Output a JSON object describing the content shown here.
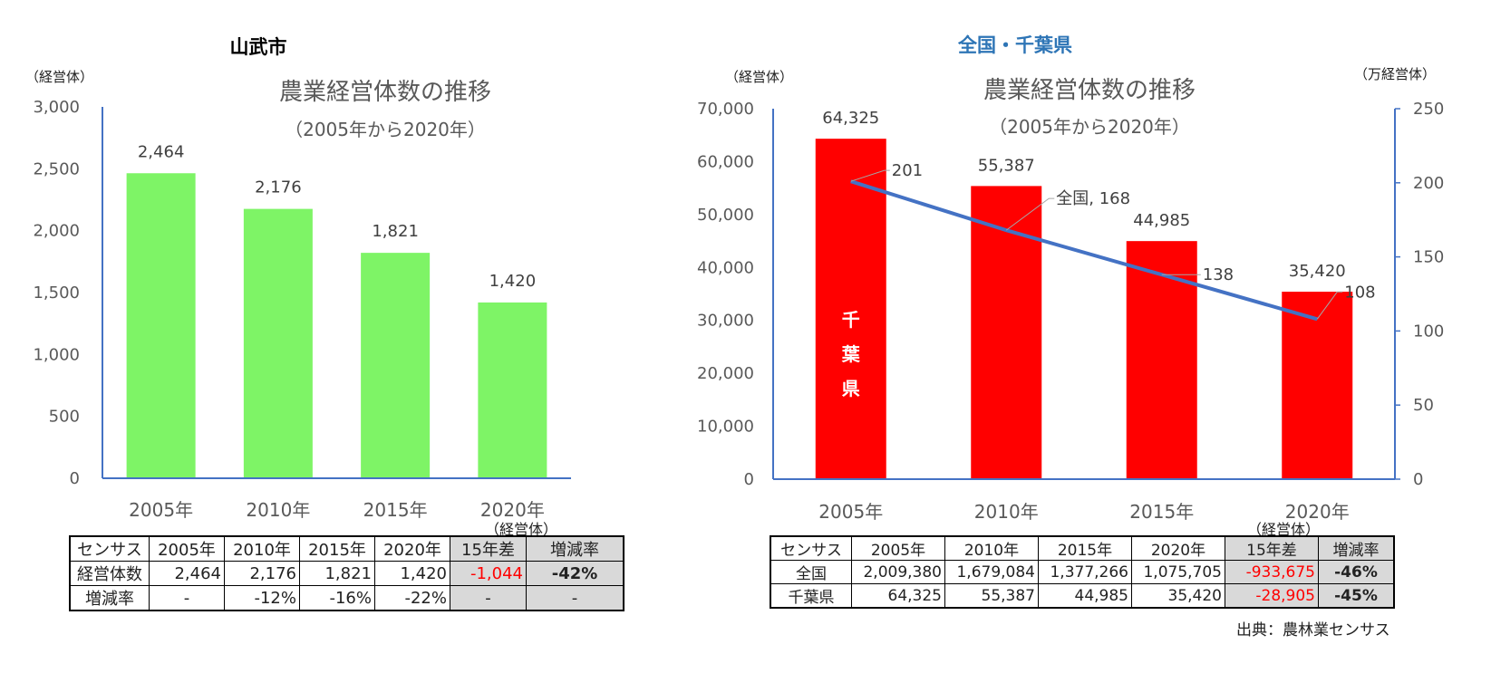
{
  "left_title": "山武市",
  "right_title": "全国・千葉県",
  "chart_data": [
    {
      "type": "bar",
      "title": "農業経営体数の推移",
      "subtitle": "（2005年から2020年）",
      "ylabel": "（経営体）",
      "categories": [
        "2005年",
        "2010年",
        "2015年",
        "2020年"
      ],
      "values": [
        2464,
        2176,
        1821,
        1420
      ],
      "data_labels": [
        "2,464",
        "2,176",
        "1,821",
        "1,420"
      ],
      "yticks": [
        "0",
        "500",
        "1,000",
        "1,500",
        "2,000",
        "2,500",
        "3,000"
      ],
      "ylim": [
        0,
        3000
      ],
      "bar_color": "#7ef466",
      "grid": false
    },
    {
      "type": "bar+line",
      "title": "農業経営体数の推移",
      "subtitle": "（2005年から2020年）",
      "ylabel": "（経営体）",
      "y2label": "（万経営体）",
      "categories": [
        "2005年",
        "2010年",
        "2015年",
        "2020年"
      ],
      "bar_series": {
        "name": "千葉県",
        "values": [
          64325,
          55387,
          44985,
          35420
        ],
        "data_labels": [
          "64,325",
          "55,387",
          "44,985",
          "35,420"
        ],
        "color": "#ff0000"
      },
      "line_series": {
        "name": "全国",
        "values": [
          201,
          168,
          138,
          108
        ],
        "data_labels": [
          "201",
          "全国, 168",
          "138",
          "108"
        ],
        "color": "#4472c4"
      },
      "yticks": [
        "0",
        "10,000",
        "20,000",
        "30,000",
        "40,000",
        "50,000",
        "60,000",
        "70,000"
      ],
      "ylim": [
        0,
        70000
      ],
      "y2ticks": [
        "0",
        "50",
        "100",
        "150",
        "200",
        "250"
      ],
      "y2lim": [
        0,
        250
      ],
      "bar_inner_label": [
        "千",
        "葉",
        "県"
      ],
      "grid": false
    }
  ],
  "left_table": {
    "unit_note": "（経営体）",
    "header": [
      "センサス",
      "2005年",
      "2010年",
      "2015年",
      "2020年",
      "15年差",
      "増減率"
    ],
    "rows": [
      [
        "経営体数",
        "2,464",
        "2,176",
        "1,821",
        "1,420",
        "-1,044",
        "-42%"
      ],
      [
        "増減率",
        "-",
        "-12%",
        "-16%",
        "-22%",
        "-",
        "-"
      ]
    ]
  },
  "right_table": {
    "unit_note": "（経営体）",
    "header": [
      "センサス",
      "2005年",
      "2010年",
      "2015年",
      "2020年",
      "15年差",
      "増減率"
    ],
    "rows": [
      [
        "全国",
        "2,009,380",
        "1,679,084",
        "1,377,266",
        "1,075,705",
        "-933,675",
        "-46%"
      ],
      [
        "千葉県",
        "64,325",
        "55,387",
        "44,985",
        "35,420",
        "-28,905",
        "-45%"
      ]
    ],
    "source": "出典：農林業センサス"
  }
}
